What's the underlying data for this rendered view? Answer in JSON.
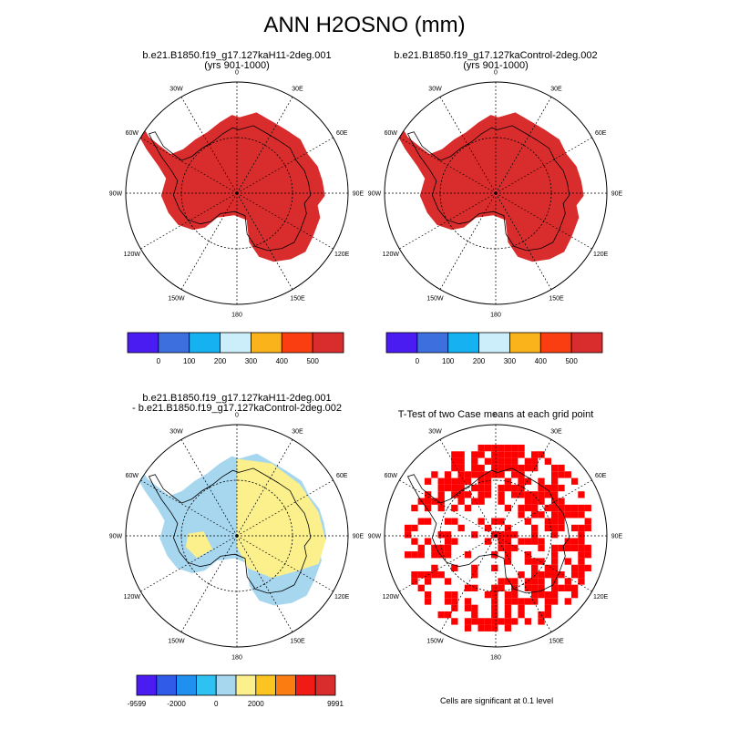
{
  "title": "ANN H2OSNO (mm)",
  "panels": [
    {
      "id": "p1",
      "line1": "b.e21.B1850.f19_g17.127kaH11-2deg.001",
      "line2": "(yrs 901-1000)"
    },
    {
      "id": "p2",
      "line1": "b.e21.B1850.f19_g17.127kaControl-2deg.002",
      "line2": "(yrs 901-1000)"
    },
    {
      "id": "p3",
      "line1": "b.e21.B1850.f19_g17.127kaH11-2deg.001",
      "line2": "- b.e21.B1850.f19_g17.127kaControl-2deg.002"
    },
    {
      "id": "p4",
      "line1": "T-Test of two Case means at each grid point",
      "line2": ""
    }
  ],
  "lon_labels": [
    "0",
    "30E",
    "60E",
    "90E",
    "120E",
    "150E",
    "180",
    "150W",
    "120W",
    "90W",
    "60W",
    "30W"
  ],
  "colorbar_top": {
    "colors": [
      "#4b1cf2",
      "#3e6fdf",
      "#15b1f0",
      "#cceefb",
      "#fbb31b",
      "#fb3e12",
      "#d92d2d"
    ],
    "labels": [
      "0",
      "100",
      "200",
      "300",
      "400",
      "500"
    ]
  },
  "colorbar_bottom": {
    "colors": [
      "#4b1cf2",
      "#2f5be8",
      "#1f8ff0",
      "#2ec2f2",
      "#a7d6ef",
      "#fbf08c",
      "#fbc420",
      "#fb7d12",
      "#f11b15",
      "#d92d2d"
    ],
    "labels": [
      "-9599",
      "-2000",
      "0",
      "2000",
      "9991"
    ]
  },
  "map_colors": {
    "snow_full": "#d92d2d",
    "diff_negative": "#a7d6ef",
    "diff_positive": "#fbf08c",
    "significant": "#ff0000"
  },
  "footnote": "Cells are significant at 0.1 level"
}
